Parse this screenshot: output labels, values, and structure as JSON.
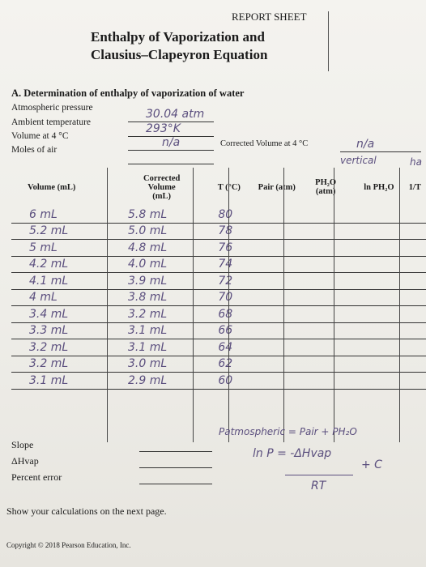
{
  "header": {
    "report": "REPORT SHEET",
    "title_line1": "Enthalpy of Vaporization and",
    "title_line2": "Clausius–Clapeyron Equation"
  },
  "section_a": {
    "title": "A. Determination of enthalpy of vaporization of water",
    "labels": {
      "atm_pressure": "Atmospheric pressure",
      "ambient_temp": "Ambient temperature",
      "volume_4c": "Volume at 4 °C",
      "moles_air": "Moles of air",
      "corrected_volume": "Corrected Volume at 4 °C"
    },
    "values": {
      "atm_pressure": "30.04 atm",
      "ambient_temp": "293°K",
      "volume_4c": "n/a",
      "moles_air": "",
      "corrected_volume": "n/a"
    },
    "note_vertical": "vertical",
    "note_cut": "ha"
  },
  "table": {
    "headers": {
      "volume": "Volume (mL)",
      "corrected_l1": "Corrected",
      "corrected_l2": "Volume",
      "corrected_l3": "(mL)",
      "temp": "T (°C)",
      "pair": "Pair (atm)",
      "ph2o_l1": "PH₂O",
      "ph2o_l2": "(atm)",
      "lnp": "ln PH₂O",
      "invt": "1/T"
    },
    "rows": [
      {
        "volume": "6 mL",
        "corrected": "5.8 mL",
        "temp": "80"
      },
      {
        "volume": "5.2 mL",
        "corrected": "5.0 mL",
        "temp": "78"
      },
      {
        "volume": "5 mL",
        "corrected": "4.8 mL",
        "temp": "76"
      },
      {
        "volume": "4.2 mL",
        "corrected": "4.0 mL",
        "temp": "74"
      },
      {
        "volume": "4.1 mL",
        "corrected": "3.9 mL",
        "temp": "72"
      },
      {
        "volume": "4 mL",
        "corrected": "3.8 mL",
        "temp": "70"
      },
      {
        "volume": "3.4 mL",
        "corrected": "3.2 mL",
        "temp": "68"
      },
      {
        "volume": "3.3 mL",
        "corrected": "3.1 mL",
        "temp": "66"
      },
      {
        "volume": "3.2 mL",
        "corrected": "3.1 mL",
        "temp": "64"
      },
      {
        "volume": "3.2 mL",
        "corrected": "3.0 mL",
        "temp": "62"
      },
      {
        "volume": "3.1 mL",
        "corrected": "2.9 mL",
        "temp": "60"
      }
    ]
  },
  "results": {
    "slope": "Slope",
    "dh_vap": "ΔHvap",
    "percent_error": "Percent error"
  },
  "notes": {
    "patm": "Patmospheric = Pair + PH₂O",
    "eq_top": "ln P = -ΔHvap",
    "eq_plus": "+ C",
    "eq_bottom": "RT"
  },
  "footer": {
    "show_calc": "Show your calculations on the next page.",
    "copyright": "Copyright © 2018 Pearson Education, Inc."
  }
}
